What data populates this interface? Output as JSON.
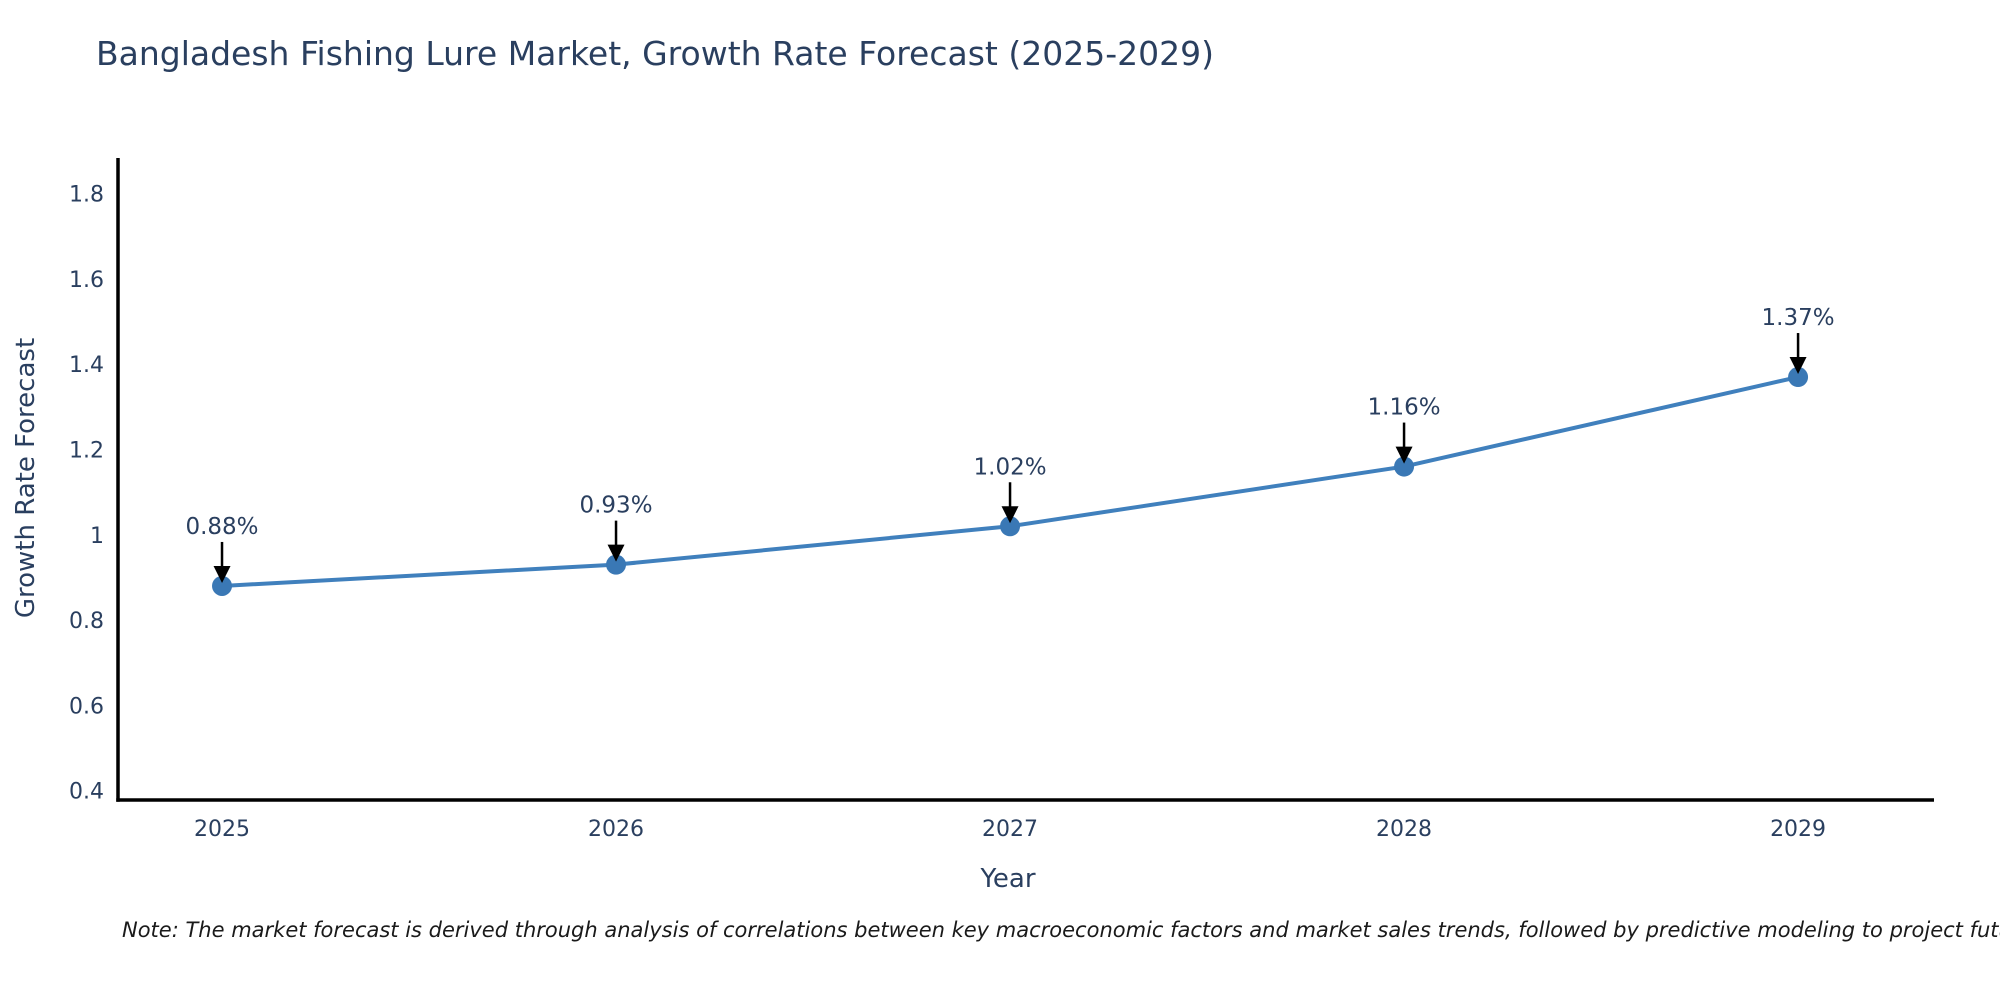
{
  "chart_data": {
    "type": "line",
    "title": "Bangladesh Fishing Lure Market, Growth Rate Forecast (2025-2029)",
    "xlabel": "Year",
    "ylabel": "Growth Rate Forecast",
    "x": [
      2025,
      2026,
      2027,
      2028,
      2029
    ],
    "x_tick_labels": [
      "2025",
      "2026",
      "2027",
      "2028",
      "2029"
    ],
    "values": [
      0.88,
      0.93,
      1.02,
      1.16,
      1.37
    ],
    "point_annotations": [
      "0.88%",
      "0.93%",
      "1.02%",
      "1.16%",
      "1.37%"
    ],
    "y_tick_labels": [
      "0.4",
      "0.6",
      "0.8",
      "1",
      "1.2",
      "1.4",
      "1.6",
      "1.8"
    ],
    "ylim": [
      0.378,
      1.879
    ],
    "xlim": [
      2024.736,
      2029.345
    ],
    "grid": false,
    "legend": "none",
    "marker": "circle",
    "annotation_arrows": true,
    "colors": {
      "line": "#4080bd",
      "marker": "#3a78b5",
      "axis": "#000000",
      "text": "#2a3f5f",
      "arrow": "#000000",
      "note": "#1a1a1a",
      "background": "#ffffff"
    },
    "note": "Note: The market forecast is derived through analysis of correlations between key macroeconomic factors and market sales trends, followed by predictive modeling to project future sales"
  }
}
